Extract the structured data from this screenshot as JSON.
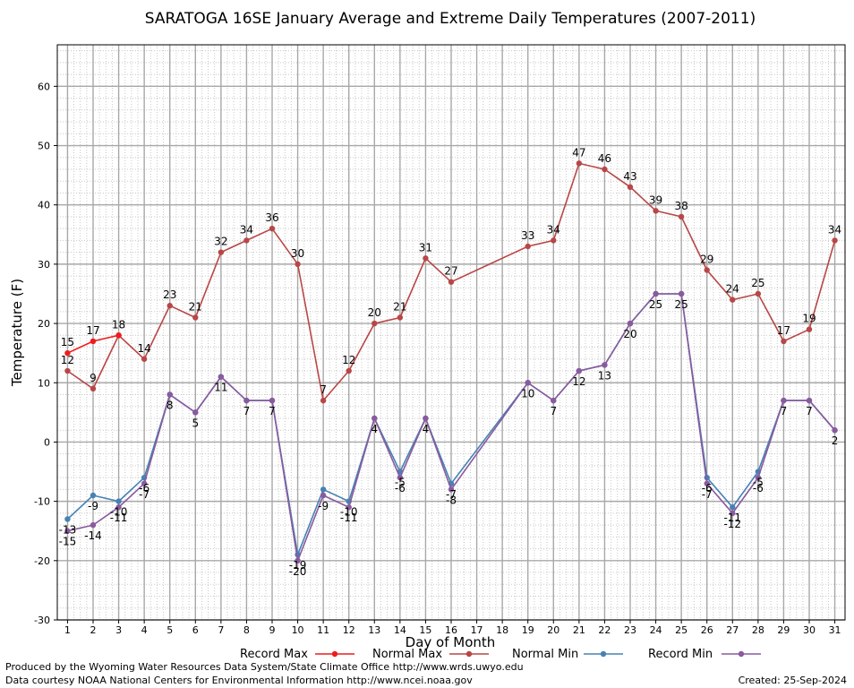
{
  "chart_data": {
    "type": "line",
    "title": "SARATOGA 16SE January Average and Extreme Daily Temperatures (2007-2011)",
    "xlabel": "Day of Month",
    "ylabel": "Temperature (F)",
    "xlim": [
      0.6,
      31.4
    ],
    "ylim": [
      -30,
      67
    ],
    "y_ticks": [
      -30,
      -20,
      -10,
      0,
      10,
      20,
      30,
      40,
      50,
      60
    ],
    "x_ticks": [
      1,
      2,
      3,
      4,
      5,
      6,
      7,
      8,
      9,
      10,
      11,
      12,
      13,
      14,
      15,
      16,
      17,
      18,
      19,
      20,
      21,
      22,
      23,
      24,
      25,
      26,
      27,
      28,
      29,
      30,
      31
    ],
    "grid": true,
    "legend_position": "bottom",
    "series": [
      {
        "name": "Record Max",
        "color": "#ee1c1c",
        "x": [
          1,
          2,
          3
        ],
        "values": [
          15,
          17,
          18
        ],
        "labels": [
          "15",
          "17",
          "18"
        ],
        "label_position": "above"
      },
      {
        "name": "Normal Max",
        "color": "#b94646",
        "x": [
          1,
          2,
          3,
          4,
          5,
          6,
          7,
          8,
          9,
          10,
          11,
          12,
          13,
          14,
          15,
          16,
          19,
          20,
          21,
          22,
          23,
          24,
          25,
          26,
          27,
          28,
          29,
          30,
          31
        ],
        "values": [
          12,
          9,
          18,
          14,
          23,
          21,
          32,
          34,
          36,
          30,
          7,
          12,
          20,
          21,
          31,
          27,
          33,
          34,
          47,
          46,
          43,
          39,
          38,
          29,
          24,
          25,
          17,
          19,
          34
        ],
        "labels": [
          "12",
          "9",
          "",
          "14",
          "23",
          "21",
          "32",
          "34",
          "36",
          "30",
          "7",
          "12",
          "20",
          "21",
          "31",
          "27",
          "33",
          "34",
          "47",
          "46",
          "43",
          "39",
          "38",
          "29",
          "24",
          "25",
          "17",
          "19",
          "34"
        ],
        "label_position": "above"
      },
      {
        "name": "Normal Min",
        "color": "#4682b4",
        "x": [
          1,
          2,
          3,
          4,
          5,
          6,
          7,
          8,
          9,
          10,
          11,
          12,
          13,
          14,
          15,
          16,
          19,
          20,
          21,
          22,
          23,
          24,
          25,
          26,
          27,
          28,
          29,
          30,
          31
        ],
        "values": [
          -13,
          -9,
          -10,
          -6,
          8,
          5,
          11,
          7,
          7,
          -19,
          -8,
          -10,
          4,
          -5,
          4,
          -7,
          10,
          7,
          12,
          13,
          20,
          25,
          25,
          -6,
          -11,
          -5,
          7,
          7,
          2
        ],
        "labels": [
          "-13",
          "-9",
          "-10",
          "-6",
          "",
          "",
          "",
          "",
          "",
          "-19",
          "",
          "-10",
          "",
          "-5",
          "",
          "-7",
          "",
          "",
          "",
          "",
          "",
          "",
          "",
          "-6",
          "-11",
          "-5",
          "",
          "",
          ""
        ],
        "label_position": "below"
      },
      {
        "name": "Record Min",
        "color": "#8a5a9e",
        "x": [
          1,
          2,
          3,
          4,
          5,
          6,
          7,
          8,
          9,
          10,
          11,
          12,
          13,
          14,
          15,
          16,
          19,
          20,
          21,
          22,
          23,
          24,
          25,
          26,
          27,
          28,
          29,
          30,
          31
        ],
        "values": [
          -15,
          -14,
          -11,
          -7,
          8,
          5,
          11,
          7,
          7,
          -20,
          -9,
          -11,
          4,
          -6,
          4,
          -8,
          10,
          7,
          12,
          13,
          20,
          25,
          25,
          -7,
          -12,
          -6,
          7,
          7,
          2
        ],
        "labels": [
          "-15",
          "-14",
          "-11",
          "-7",
          "8",
          "5",
          "11",
          "7",
          "7",
          "-20",
          "-9",
          "-11",
          "4",
          "-6",
          "4",
          "-8",
          "10",
          "7",
          "12",
          "13",
          "20",
          "25",
          "25",
          "-7",
          "-12",
          "-6",
          "7",
          "7",
          "2"
        ],
        "label_position": "below"
      }
    ]
  },
  "footer": {
    "produced_by": "Produced by the Wyoming Water Resources Data System/State Climate Office http://www.wrds.uwyo.edu",
    "courtesy": "Data courtesy NOAA National Centers for Environmental Information http://www.ncei.noaa.gov",
    "created": "Created:  25-Sep-2024"
  }
}
